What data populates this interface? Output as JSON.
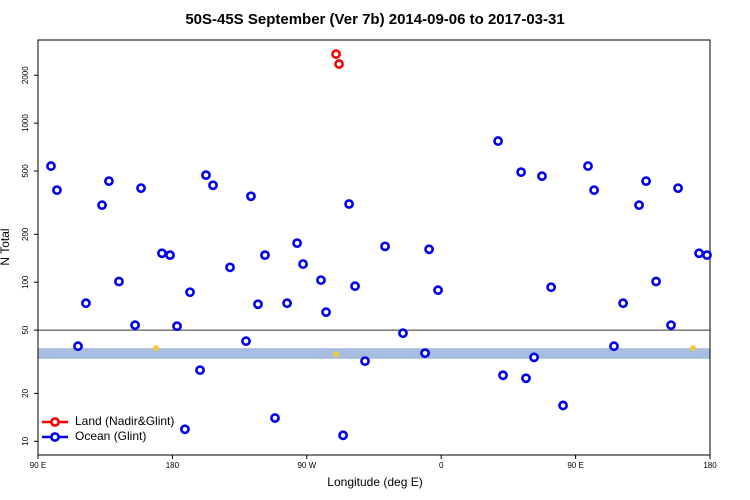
{
  "chart_data": {
    "type": "scatter",
    "title": "50S-45S September (Ver 7b)   2014-09-06 to 2017-03-31",
    "x_label": "Longitude (deg E)",
    "y_label": "N Total",
    "y_log": true,
    "xlim": [
      90,
      540
    ],
    "ylim": [
      8.2,
      3330
    ],
    "xticks": [
      {
        "value": 90,
        "label": "90 E"
      },
      180,
      {
        "value": 270,
        "label": "90 W"
      },
      {
        "value": 360,
        "label": "0"
      },
      {
        "value": 450,
        "label": "90 E"
      },
      {
        "value": 540,
        "label": "180"
      }
    ],
    "yticks": [
      10,
      20,
      50,
      100,
      200,
      500,
      1000,
      2000
    ],
    "legend": "bottom-left",
    "hline": {
      "value": 50,
      "color": "#333333"
    },
    "band": {
      "range": [
        33,
        38.5
      ],
      "color": "#a7bde0"
    },
    "markers": {
      "color": "#f5c842",
      "x": [
        169.0,
        289.6,
        528.6
      ],
      "values": [
        38.5,
        35.3,
        38.5
      ]
    },
    "series": [
      {
        "name": "Land (Nadir&Glint)",
        "color": "#ff0000",
        "x": [
          289.6,
          291.6
        ],
        "values": [
          2716,
          2350
        ]
      },
      {
        "name": "Ocean (Glint)",
        "color": "#0000ee",
        "x": [
          98.7,
          102.7,
          116.8,
          122.1,
          132.9,
          137.5,
          144.2,
          155.0,
          159.0,
          173.0,
          178.4,
          183.1,
          188.4,
          191.8,
          198.5,
          202.5,
          207.2,
          218.6,
          229.3,
          232.6,
          237.3,
          242.0,
          248.7,
          256.8,
          263.5,
          267.5,
          279.5,
          282.9,
          294.3,
          298.3,
          302.3,
          309.0,
          322.4,
          334.4,
          349.2,
          351.9,
          357.9,
          398.1,
          401.4,
          413.5,
          416.8,
          422.2,
          427.5,
          433.6,
          441.6,
          458.3,
          462.4,
          475.7,
          481.8,
          492.5,
          497.2,
          503.9,
          513.9,
          518.6,
          532.7,
          538.0
        ],
        "values": [
          537,
          379,
          39.6,
          73.8,
          305,
          432,
          101,
          53.7,
          390,
          152,
          148,
          52.9,
          11.9,
          86.5,
          28.0,
          471,
          407,
          124,
          42.6,
          347,
          72.7,
          148,
          14.0,
          73.8,
          176,
          130,
          103,
          64.8,
          10.9,
          310,
          94.4,
          31.9,
          168,
          47.8,
          35.8,
          161,
          89.1,
          771,
          26.0,
          492,
          24.9,
          33.7,
          464,
          93,
          16.8,
          537,
          379,
          39.6,
          73.8,
          305,
          432,
          101,
          53.7,
          390,
          152,
          148
        ]
      }
    ]
  }
}
